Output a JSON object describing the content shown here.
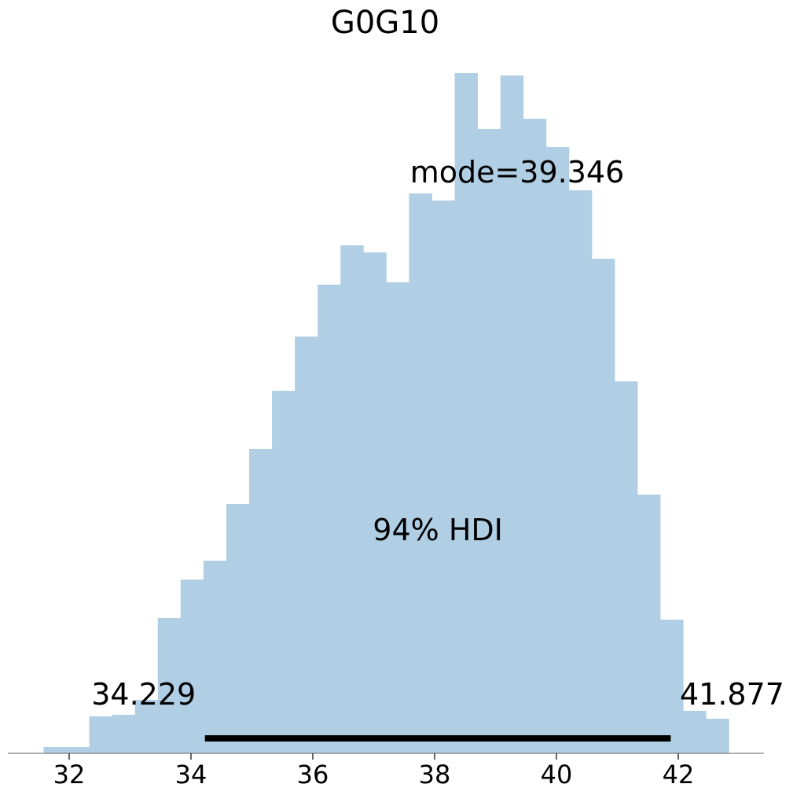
{
  "chart_data": {
    "type": "bar",
    "title": "G0G10",
    "xlabel": "",
    "ylabel": "",
    "xlim": [
      31.0,
      43.4
    ],
    "xticks": [
      32,
      34,
      36,
      38,
      40,
      42
    ],
    "xtick_labels": [
      "32",
      "34",
      "36",
      "38",
      "40",
      "42"
    ],
    "y_axis_visible": false,
    "grid": false,
    "bins": {
      "edges": [
        31.58,
        31.955,
        32.33,
        32.705,
        33.08,
        33.455,
        33.83,
        34.205,
        34.58,
        34.955,
        35.33,
        35.705,
        36.08,
        36.455,
        36.83,
        37.205,
        37.58,
        37.955,
        38.33,
        38.705,
        39.08,
        39.455,
        39.83,
        40.205,
        40.58,
        40.955,
        41.33,
        41.705,
        42.08,
        42.455,
        42.83
      ],
      "values": [
        8,
        8,
        47,
        49,
        68,
        172,
        221,
        245,
        317,
        387,
        461,
        530,
        596,
        646,
        637,
        599,
        712,
        703,
        865,
        794,
        862,
        807,
        771,
        716,
        629,
        473,
        329,
        170,
        54,
        44
      ]
    },
    "color": "#b0cfe4",
    "annotations": {
      "mode_label": "mode=39.346",
      "hdi_label": "94% HDI",
      "hdi_low": 34.229,
      "hdi_high": 41.877,
      "hdi_low_label": "34.229",
      "hdi_high_label": "41.877"
    }
  }
}
